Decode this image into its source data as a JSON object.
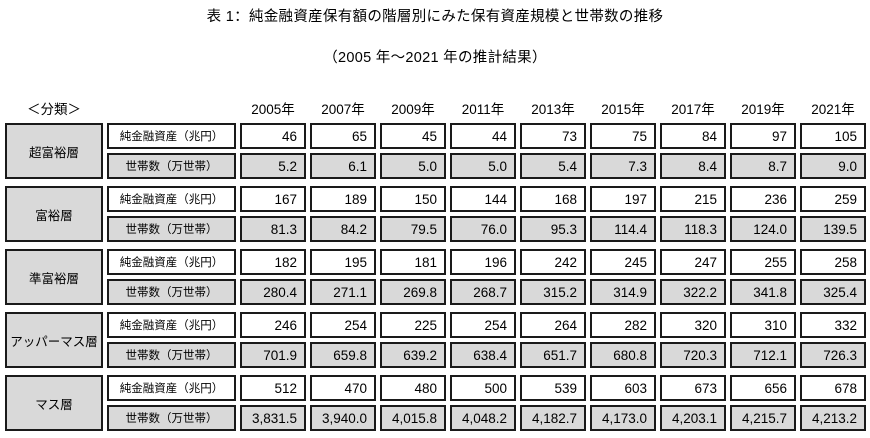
{
  "title": "表 1：純金融資産保有額の階層別にみた保有資産規模と世帯数の推移",
  "subtitle": "（2005 年～2021 年の推計結果）",
  "table": {
    "classification_header": "＜分類＞",
    "years": [
      "2005年",
      "2007年",
      "2009年",
      "2011年",
      "2013年",
      "2015年",
      "2017年",
      "2019年",
      "2021年"
    ],
    "metric_labels": {
      "assets": "純金融資産（兆円）",
      "households": "世帯数（万世帯）"
    },
    "tiers": [
      {
        "name": "超富裕層",
        "assets": [
          "46",
          "65",
          "45",
          "44",
          "73",
          "75",
          "84",
          "97",
          "105"
        ],
        "households": [
          "5.2",
          "6.1",
          "5.0",
          "5.0",
          "5.4",
          "7.3",
          "8.4",
          "8.7",
          "9.0"
        ]
      },
      {
        "name": "富裕層",
        "assets": [
          "167",
          "189",
          "150",
          "144",
          "168",
          "197",
          "215",
          "236",
          "259"
        ],
        "households": [
          "81.3",
          "84.2",
          "79.5",
          "76.0",
          "95.3",
          "114.4",
          "118.3",
          "124.0",
          "139.5"
        ]
      },
      {
        "name": "準富裕層",
        "assets": [
          "182",
          "195",
          "181",
          "196",
          "242",
          "245",
          "247",
          "255",
          "258"
        ],
        "households": [
          "280.4",
          "271.1",
          "269.8",
          "268.7",
          "315.2",
          "314.9",
          "322.2",
          "341.8",
          "325.4"
        ]
      },
      {
        "name": "アッパーマス層",
        "assets": [
          "246",
          "254",
          "225",
          "254",
          "264",
          "282",
          "320",
          "310",
          "332"
        ],
        "households": [
          "701.9",
          "659.8",
          "639.2",
          "638.4",
          "651.7",
          "680.8",
          "720.3",
          "712.1",
          "726.3"
        ]
      },
      {
        "name": "マス層",
        "assets": [
          "512",
          "470",
          "480",
          "500",
          "539",
          "603",
          "673",
          "656",
          "678"
        ],
        "households": [
          "3,831.5",
          "3,940.0",
          "4,015.8",
          "4,048.2",
          "4,182.7",
          "4,173.0",
          "4,203.1",
          "4,215.7",
          "4,213.2"
        ]
      }
    ]
  },
  "colors": {
    "shaded_cell": "#d9d9d9",
    "cell_border": "#1a1a1a",
    "text": "#000000",
    "background": "#ffffff"
  }
}
